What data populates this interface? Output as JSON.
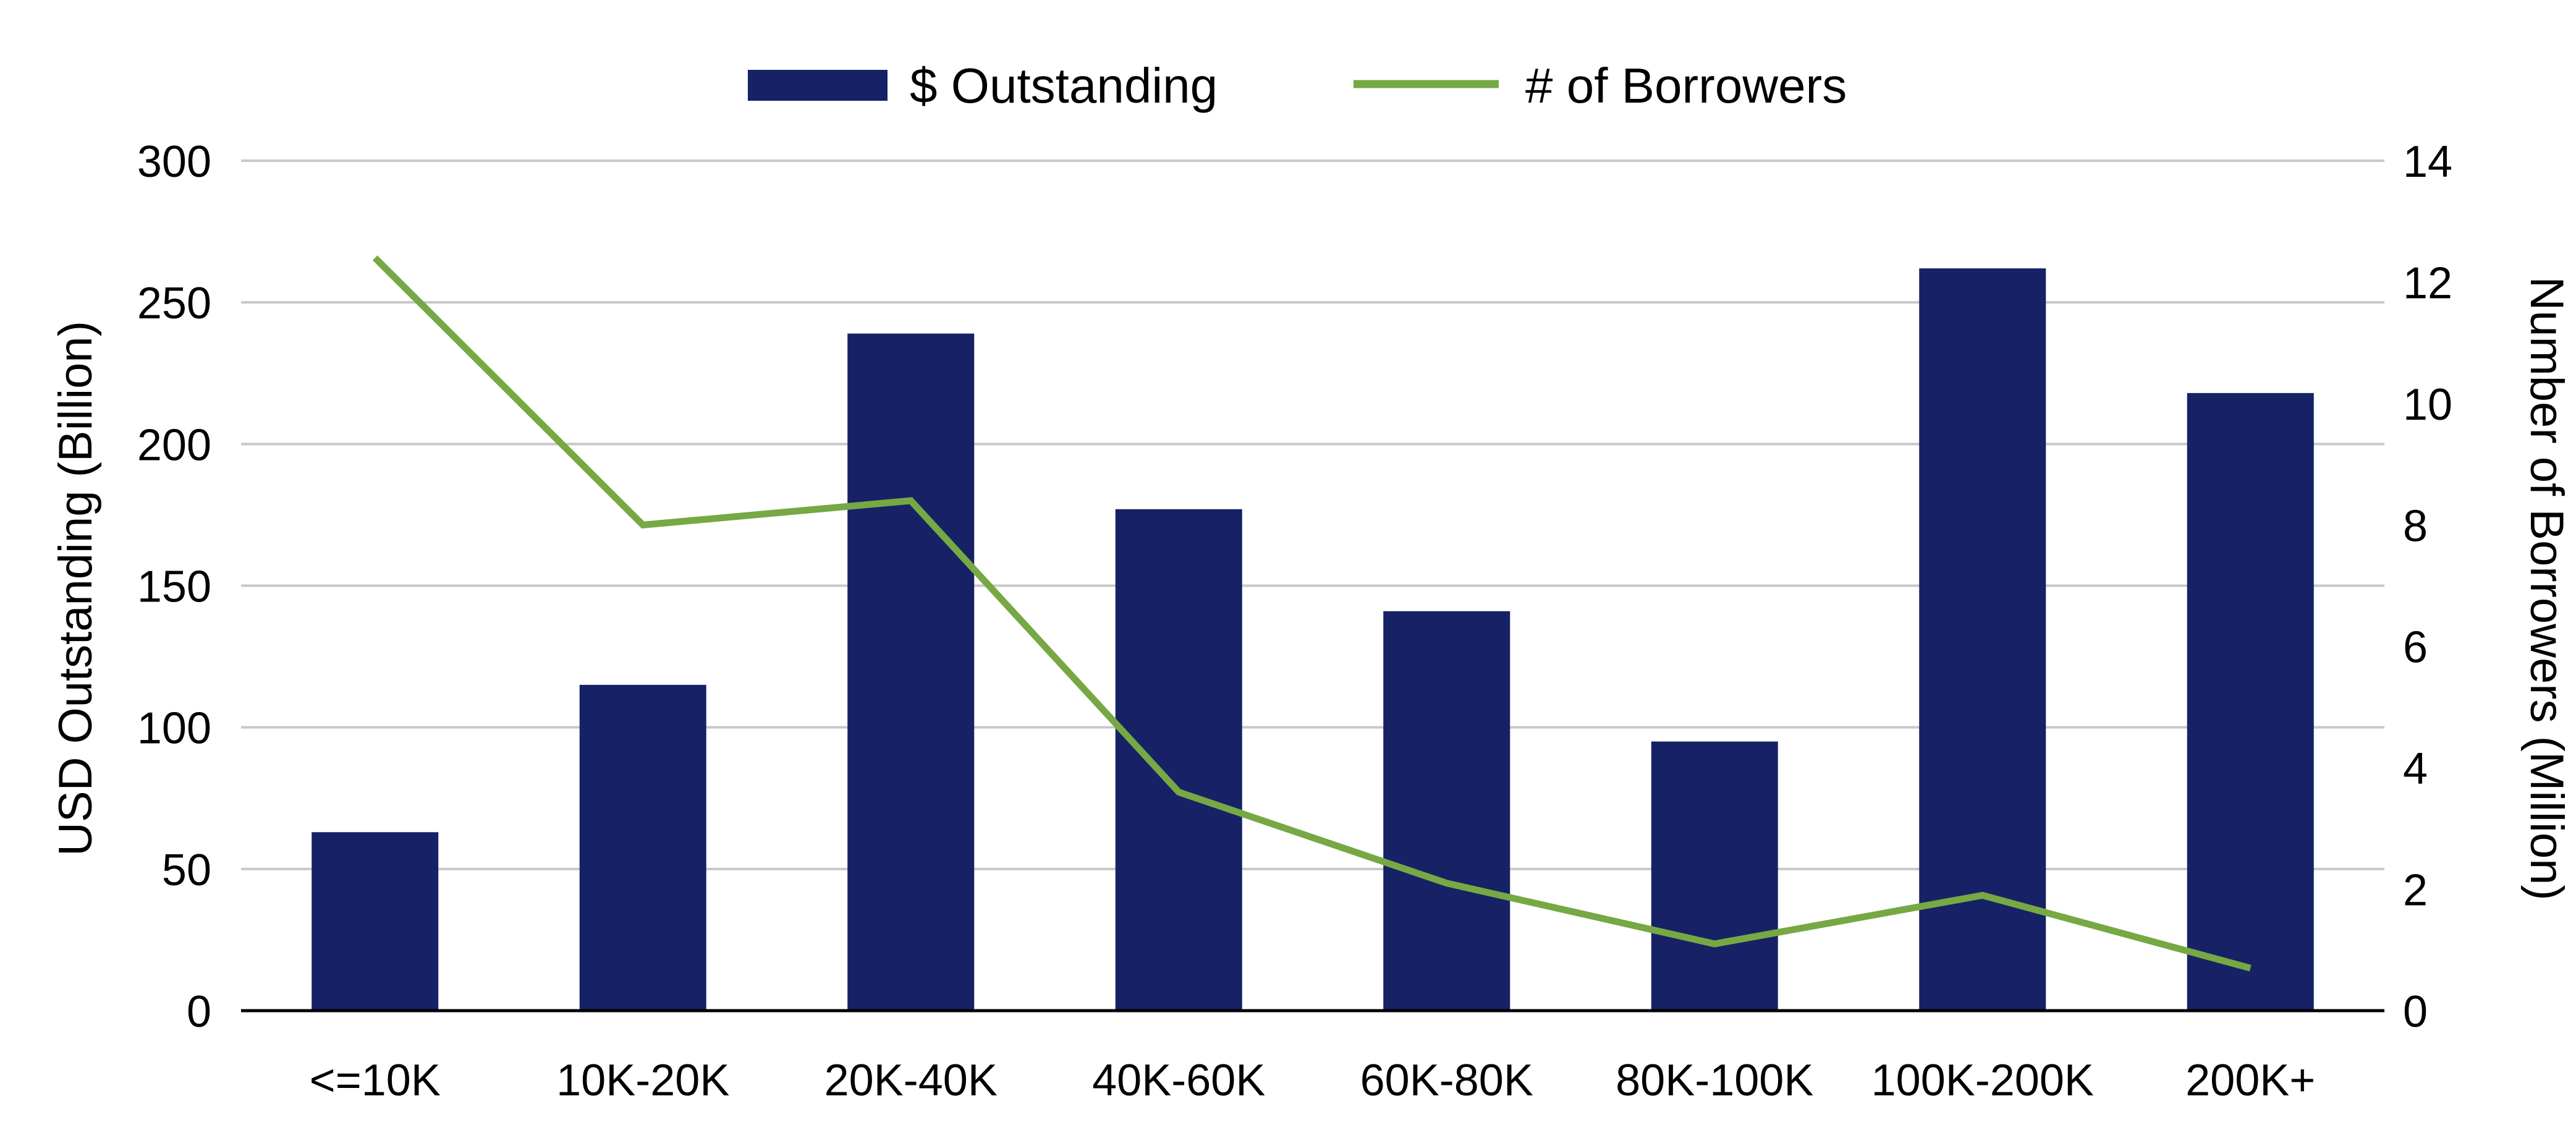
{
  "chart_data": {
    "type": "bar",
    "title": "",
    "categories": [
      "<=10K",
      "10K-20K",
      "20K-40K",
      "40K-60K",
      "60K-80K",
      "80K-100K",
      "100K-200K",
      "200K+"
    ],
    "series": [
      {
        "name": "$ Outstanding",
        "type": "bar",
        "axis": "left",
        "values": [
          63,
          115,
          239,
          177,
          141,
          95,
          262,
          218
        ]
      },
      {
        "name": "# of Borrowers",
        "type": "line",
        "axis": "right",
        "values": [
          12.4,
          8.0,
          8.4,
          3.6,
          2.1,
          1.1,
          1.9,
          0.7
        ]
      }
    ],
    "y_left": {
      "label": "USD Outstanding (Billion)",
      "ylim": [
        0,
        300
      ],
      "ticks": [
        0,
        50,
        100,
        150,
        200,
        250,
        300
      ]
    },
    "y_right": {
      "label": "Number of Borrowers (Million)",
      "ylim": [
        0,
        14
      ],
      "ticks": [
        0,
        2,
        4,
        6,
        8,
        10,
        12,
        14
      ]
    },
    "xlabel": "",
    "grid": true,
    "legend_position": "top-center",
    "colors": {
      "bar": "#162265",
      "line": "#76a844",
      "grid": "#c8c8c8",
      "axis": "#000000"
    }
  }
}
